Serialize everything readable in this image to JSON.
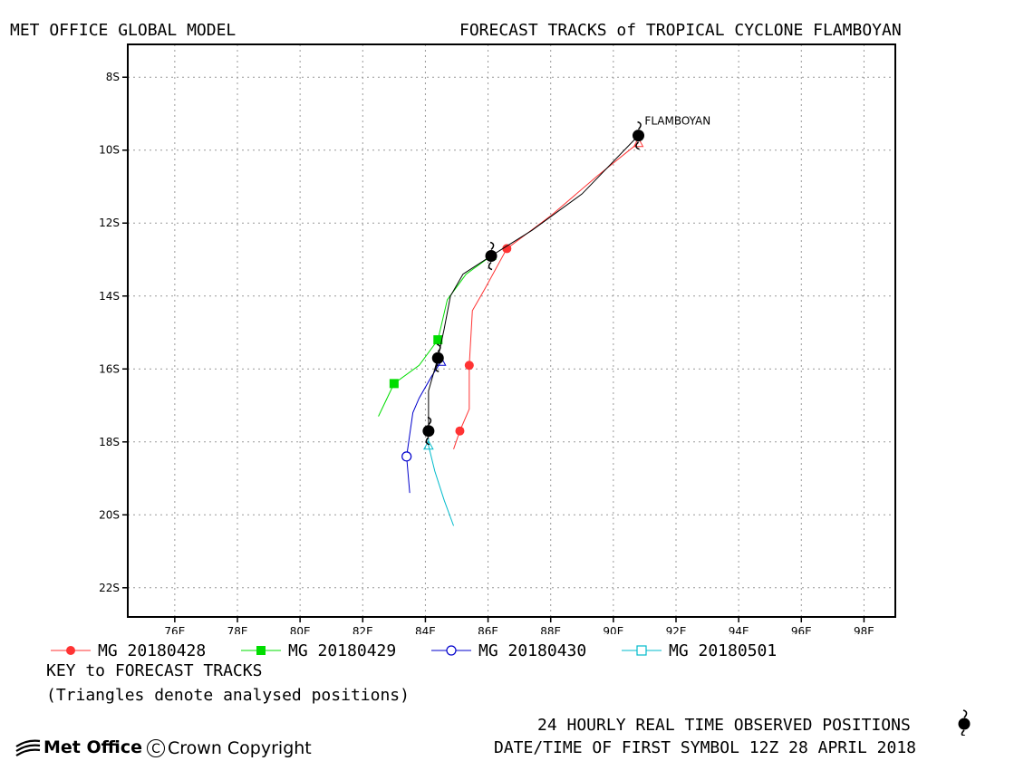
{
  "header": {
    "left_title": "MET OFFICE GLOBAL MODEL",
    "right_title": "FORECAST TRACKS of TROPICAL CYCLONE FLAMBOYAN"
  },
  "key": {
    "title": "KEY to FORECAST TRACKS",
    "note": "(Triangles denote analysed positions)"
  },
  "footer": {
    "observed_label": "24 HOURLY REAL TIME OBSERVED POSITIONS",
    "first_symbol": "DATE/TIME OF FIRST SYMBOL 12Z 28 APRIL 2018",
    "logo_text": "Met Office",
    "copyright": "Crown Copyright"
  },
  "chart_data": {
    "type": "line",
    "title": "FORECAST TRACKS of TROPICAL CYCLONE FLAMBOYAN",
    "xlim": [
      74.5,
      99.0
    ],
    "ylim": [
      -22.8,
      -7.1
    ],
    "x_ticks": [
      76,
      78,
      80,
      82,
      84,
      86,
      88,
      90,
      92,
      94,
      96,
      98
    ],
    "x_tick_labels": [
      "76E",
      "78E",
      "80E",
      "82E",
      "84E",
      "86E",
      "88E",
      "90E",
      "92E",
      "94E",
      "96E",
      "98E"
    ],
    "y_ticks": [
      -8,
      -10,
      -12,
      -14,
      -16,
      -18,
      -20,
      -22
    ],
    "y_tick_labels": [
      "8S",
      "10S",
      "12S",
      "14S",
      "16S",
      "18S",
      "20S",
      "22S"
    ],
    "grid": true,
    "legend_position": "bottom",
    "storm_label": {
      "text": "FLAMBOYAN",
      "lon": 91.0,
      "lat": -9.3
    },
    "series": [
      {
        "name": "MG 20180428",
        "color": "#ff3333",
        "marker": "filled-circle",
        "track": [
          [
            90.8,
            -9.8
          ],
          [
            89.5,
            -10.7
          ],
          [
            88.0,
            -11.8
          ],
          [
            86.6,
            -12.7
          ],
          [
            85.9,
            -13.8
          ],
          [
            85.5,
            -14.4
          ],
          [
            85.4,
            -15.9
          ],
          [
            85.4,
            -17.1
          ],
          [
            85.1,
            -17.7
          ],
          [
            84.9,
            -18.2
          ]
        ],
        "markers": [
          [
            86.6,
            -12.7
          ],
          [
            85.4,
            -15.9
          ],
          [
            85.1,
            -17.7
          ]
        ],
        "analysed": [
          [
            90.8,
            -9.8
          ]
        ]
      },
      {
        "name": "MG 20180429",
        "color": "#00dd00",
        "marker": "filled-square",
        "track": [
          [
            86.1,
            -12.9
          ],
          [
            85.3,
            -13.4
          ],
          [
            84.7,
            -14.1
          ],
          [
            84.4,
            -15.2
          ],
          [
            83.8,
            -15.9
          ],
          [
            83.0,
            -16.4
          ],
          [
            82.5,
            -17.3
          ]
        ],
        "markers": [
          [
            84.4,
            -15.2
          ],
          [
            83.0,
            -16.4
          ]
        ],
        "analysed": [
          [
            86.1,
            -12.9
          ]
        ]
      },
      {
        "name": "MG 20180430",
        "color": "#0000cc",
        "marker": "open-circle",
        "track": [
          [
            84.5,
            -15.8
          ],
          [
            84.2,
            -16.2
          ],
          [
            83.8,
            -16.8
          ],
          [
            83.6,
            -17.2
          ],
          [
            83.5,
            -17.8
          ],
          [
            83.4,
            -18.4
          ],
          [
            83.5,
            -19.4
          ]
        ],
        "markers": [
          [
            83.4,
            -18.4
          ]
        ],
        "analysed": [
          [
            84.5,
            -15.8
          ]
        ]
      },
      {
        "name": "MG 20180501",
        "color": "#00bbcc",
        "marker": "open-square",
        "track": [
          [
            84.1,
            -17.9
          ],
          [
            84.1,
            -18.1
          ],
          [
            84.3,
            -18.8
          ],
          [
            84.6,
            -19.6
          ],
          [
            84.9,
            -20.3
          ]
        ],
        "markers": [],
        "analysed": [
          [
            84.1,
            -18.1
          ]
        ]
      }
    ],
    "observed": {
      "name": "24 HOURLY REAL TIME OBSERVED POSITIONS",
      "color": "#000000",
      "track": [
        [
          90.8,
          -9.6
        ],
        [
          89.0,
          -11.2
        ],
        [
          87.4,
          -12.2
        ],
        [
          86.1,
          -12.9
        ],
        [
          85.2,
          -13.4
        ],
        [
          84.8,
          -14.0
        ],
        [
          84.6,
          -14.9
        ],
        [
          84.4,
          -15.7
        ],
        [
          84.1,
          -16.6
        ],
        [
          84.1,
          -17.2
        ],
        [
          84.1,
          -17.7
        ]
      ],
      "symbols": [
        [
          90.8,
          -9.6
        ],
        [
          86.1,
          -12.9
        ],
        [
          84.4,
          -15.7
        ],
        [
          84.1,
          -17.7
        ]
      ]
    }
  }
}
